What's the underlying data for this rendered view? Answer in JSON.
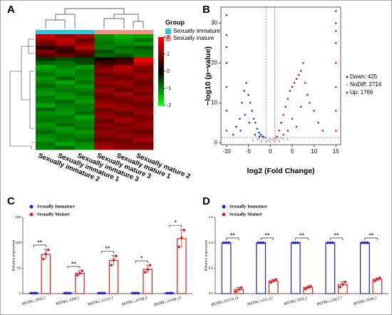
{
  "panels": [
    "A",
    "B",
    "C",
    "D"
  ],
  "chart_data": [
    {
      "type": "heatmap",
      "legend_title": "Group",
      "groups": [
        {
          "name": "Sexually immature",
          "color": "#2ec4d6"
        },
        {
          "name": "Sexually mature",
          "color": "#f2918a"
        }
      ],
      "column_groups": [
        0,
        0,
        0,
        1,
        1,
        1
      ],
      "columns": [
        "Sexually immature 2",
        "Sexually immature 1",
        "Sexually immature 3",
        "Sexually mature 3",
        "Sexually mature 1",
        "Sexually mature 2"
      ],
      "colorbar_ticks": [
        2,
        1,
        0,
        -1,
        -2
      ],
      "colors": [
        "#00ff00",
        "#000000",
        "#ff0000"
      ],
      "rows": [
        [
          1.6,
          1.2,
          1.4,
          -1.2,
          -1.4,
          -1.3
        ],
        [
          1.2,
          1.5,
          0.8,
          -1,
          -1.2,
          -0.9
        ],
        [
          0.9,
          1.3,
          1.1,
          -0.9,
          -1.1,
          -1.2
        ],
        [
          0.3,
          0.6,
          1.5,
          -1,
          -0.8,
          -0.7
        ],
        [
          1,
          0.4,
          0.8,
          -0.6,
          -1,
          -0.9
        ],
        [
          0.7,
          0.9,
          0.5,
          -0.8,
          -0.7,
          -1
        ],
        [
          -0.4,
          -0.6,
          -0.5,
          0.2,
          0.4,
          1.9
        ],
        [
          -0.8,
          -0.9,
          -0.6,
          0.5,
          0.6,
          1.6
        ],
        [
          -1.3,
          -1,
          -1.2,
          0.9,
          1.4,
          1.1
        ],
        [
          -1.1,
          -1.2,
          -0.9,
          1.2,
          1.3,
          0.9
        ],
        [
          -0.9,
          -1.1,
          -1,
          0.8,
          1,
          1.2
        ],
        [
          -1.2,
          -0.8,
          -1.1,
          1,
          0.9,
          1.1
        ],
        [
          -1,
          -1.3,
          -0.9,
          1.1,
          1.2,
          0.8
        ],
        [
          -0.8,
          -1,
          -1.2,
          0.9,
          1.1,
          1
        ],
        [
          -1.1,
          -0.9,
          -1,
          1.2,
          0.8,
          1.1
        ],
        [
          -1.2,
          -1.1,
          -0.8,
          1,
          1.3,
          0.9
        ],
        [
          -0.9,
          -1.2,
          -1.1,
          0.8,
          1,
          1.2
        ],
        [
          -1,
          -0.8,
          -1.2,
          1.1,
          0.9,
          1
        ],
        [
          -1.3,
          -1,
          -0.9,
          1.3,
          1.1,
          0.8
        ],
        [
          -0.8,
          -1.1,
          -1,
          0.9,
          1.2,
          1.1
        ],
        [
          -1.1,
          -1.2,
          -0.8,
          1,
          0.8,
          1.2
        ],
        [
          -1,
          -0.9,
          -1.3,
          1.2,
          1,
          0.9
        ],
        [
          -0.9,
          -1,
          -1.1,
          0.8,
          1.3,
          1
        ],
        [
          -1.2,
          -0.8,
          -1,
          1.1,
          0.9,
          1.2
        ],
        [
          -1,
          -1.2,
          -0.9,
          0.9,
          1.1,
          1
        ],
        [
          -0.8,
          -1.1,
          -1.2,
          1.2,
          1,
          0.8
        ],
        [
          -1.1,
          -0.9,
          -1,
          1,
          1.2,
          1.1
        ],
        [
          -1.2,
          -1,
          -0.8,
          0.8,
          0.9,
          1.3
        ],
        [
          -0.9,
          -1.3,
          -1.1,
          1.1,
          1,
          0.9
        ],
        [
          -1,
          -0.8,
          -1.2,
          1.3,
          1.1,
          1
        ]
      ]
    },
    {
      "type": "scatter",
      "xlabel": "log2 (Fold Change)",
      "ylabel": "−log10 (p−value)",
      "xlim": [
        -11.3,
        16.1
      ],
      "xticks": [
        -10,
        -5,
        0,
        5,
        10,
        15
      ],
      "ylim": [
        -0.5,
        34
      ],
      "yticks": [
        0,
        10,
        20,
        30
      ],
      "vlines": [
        -1,
        1
      ],
      "hline": 1.3,
      "series": [
        {
          "name": "Down: 425",
          "color": "#1f3fd6",
          "x": [
            -10,
            -10,
            -10,
            -10,
            -10,
            -10,
            -10,
            -8.5,
            -7.8,
            -7,
            -6.5,
            -6,
            -5.5,
            -5,
            -4.6,
            -4.2,
            -3.8,
            -3.4,
            -3,
            -2.6,
            -2.2,
            -1.8,
            -1.5,
            -6.8,
            -5.8,
            -4.8,
            -3.5,
            -2.5
          ],
          "y": [
            32,
            27,
            24,
            20,
            14,
            8,
            3,
            2,
            4,
            6,
            10,
            13,
            15,
            12,
            10,
            8,
            6,
            5,
            3.5,
            2.5,
            2,
            1.6,
            1.4,
            3,
            7,
            5,
            2,
            1.5
          ]
        },
        {
          "name": "NoDiff: 2716",
          "color": "#b5b5b5",
          "x": [
            -3,
            -2.5,
            -2,
            -1.5,
            -1,
            -0.5,
            0,
            0.5,
            1,
            1.5,
            2,
            2.5,
            3,
            -2,
            0,
            2,
            -1,
            1,
            4,
            -4
          ],
          "y": [
            0.8,
            1,
            0.5,
            1.1,
            0.3,
            0.6,
            0.2,
            0.7,
            0.4,
            1,
            0.6,
            1.2,
            0.9,
            0.2,
            0.9,
            0.3,
            1.2,
            1.1,
            0.8,
            0.6
          ]
        },
        {
          "name": "Up: 1766",
          "color": "#e8141a",
          "x": [
            15,
            15,
            15,
            15,
            15,
            15,
            15,
            15,
            1.5,
            2,
            2.5,
            3,
            3.5,
            4,
            4.5,
            5,
            5.5,
            6,
            6.5,
            7,
            7.5,
            8,
            8.5,
            9,
            10,
            11,
            12,
            3,
            5,
            7,
            4,
            6
          ],
          "y": [
            33,
            30,
            28,
            25,
            20,
            14,
            8,
            3,
            1.5,
            3,
            5,
            7,
            9,
            11,
            13,
            14,
            15,
            16,
            17,
            18,
            20,
            15,
            12,
            10,
            8,
            5,
            3,
            2,
            6,
            9,
            3,
            4
          ]
        }
      ]
    },
    {
      "type": "bar",
      "ylabel": "Relative expression",
      "ylim": [
        0,
        150
      ],
      "yticks": [
        0,
        50,
        100,
        150
      ],
      "categories": [
        "MSTRG.2905.2",
        "MSTRG.1990.1",
        "MSTRG.12525.1",
        "MSTRG.24768.9",
        "MSTRG.24768.19"
      ],
      "annotations": [
        "**",
        "**",
        "**",
        "*",
        "*"
      ],
      "series": [
        {
          "name": "Sexually Immature",
          "color": "#1a1ae6",
          "values": [
            1,
            1,
            1,
            1,
            1
          ],
          "errors": [
            0.2,
            0.2,
            0.2,
            0.2,
            0.2
          ],
          "points": [
            [
              1,
              1,
              1
            ],
            [
              1,
              1,
              1
            ],
            [
              1,
              1,
              1
            ],
            [
              1,
              1,
              1
            ],
            [
              1,
              1,
              1
            ]
          ]
        },
        {
          "name": "Sexually Mature",
          "color": "#e61a1a",
          "values": [
            77,
            40,
            65,
            48,
            108
          ],
          "errors": [
            10,
            5,
            10,
            8,
            18
          ],
          "points": [
            [
              68,
              78,
              86
            ],
            [
              36,
              40,
              45
            ],
            [
              56,
              66,
              74
            ],
            [
              42,
              47,
              56
            ],
            [
              92,
              110,
              125
            ]
          ]
        }
      ]
    },
    {
      "type": "bar",
      "ylabel": "Relative expression",
      "ylim": [
        0,
        1.5
      ],
      "yticks": [
        {
          "value": 0,
          "label": "0.0"
        },
        {
          "value": 0.5,
          "label": "0.5"
        },
        {
          "value": 1,
          "label": "1.0"
        },
        {
          "value": 1.5,
          "label": "1.5"
        }
      ],
      "categories": [
        "MSTRG.16724.15",
        "MSTRG.5221.12",
        "MSTRG.3091.2",
        "MSTRG.12827.7",
        "MSTRG.9106.2"
      ],
      "annotations": [
        "**",
        "**",
        "**",
        "**",
        "**"
      ],
      "series": [
        {
          "name": "Sexually Immature",
          "color": "#1a1ae6",
          "values": [
            1,
            1,
            1,
            1,
            1
          ],
          "errors": [
            0.01,
            0.01,
            0.01,
            0.01,
            0.01
          ],
          "points": [
            [
              1,
              1,
              1
            ],
            [
              1,
              1,
              1
            ],
            [
              1,
              1,
              1
            ],
            [
              1,
              1,
              1
            ],
            [
              1,
              1,
              1
            ]
          ]
        },
        {
          "name": "Sexually Mature",
          "color": "#e61a1a",
          "values": [
            0.08,
            0.25,
            0.12,
            0.18,
            0.28
          ],
          "errors": [
            0.04,
            0.03,
            0.03,
            0.05,
            0.03
          ],
          "points": [
            [
              0.04,
              0.08,
              0.12
            ],
            [
              0.22,
              0.25,
              0.28
            ],
            [
              0.09,
              0.12,
              0.15
            ],
            [
              0.13,
              0.18,
              0.23
            ],
            [
              0.25,
              0.28,
              0.31
            ]
          ]
        }
      ]
    }
  ]
}
